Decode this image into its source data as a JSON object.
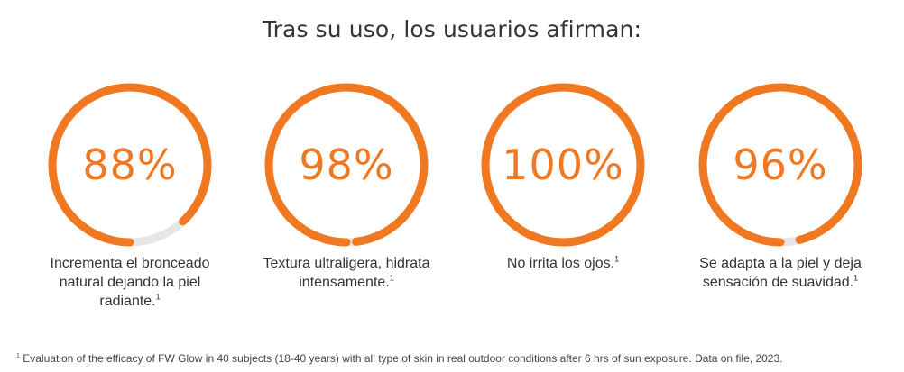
{
  "title": "Tras su uso, los usuarios afirman:",
  "colors": {
    "accent": "#F07820",
    "track": "#E6E6E6",
    "text": "#333333"
  },
  "stats": [
    {
      "value": "88%",
      "fraction": 0.88,
      "caption": "Incrementa el bronceado natural dejando la piel radiante.",
      "sup": "1"
    },
    {
      "value": "98%",
      "fraction": 0.98,
      "caption": "Textura ultraligera, hidrata intensamente.",
      "sup": "1"
    },
    {
      "value": "100%",
      "fraction": 1.0,
      "caption": "No irrita los ojos.",
      "sup": "1"
    },
    {
      "value": "96%",
      "fraction": 0.96,
      "caption": "Se adapta a la piel y deja sensación de suavidad.",
      "sup": "1"
    }
  ],
  "footnote": {
    "marker": "1",
    "text": "Evaluation of the efficacy of FW Glow in 40 subjects (18-40 years) with all type of skin in real outdoor conditions after 6 hrs of sun exposure. Data on file, 2023."
  }
}
